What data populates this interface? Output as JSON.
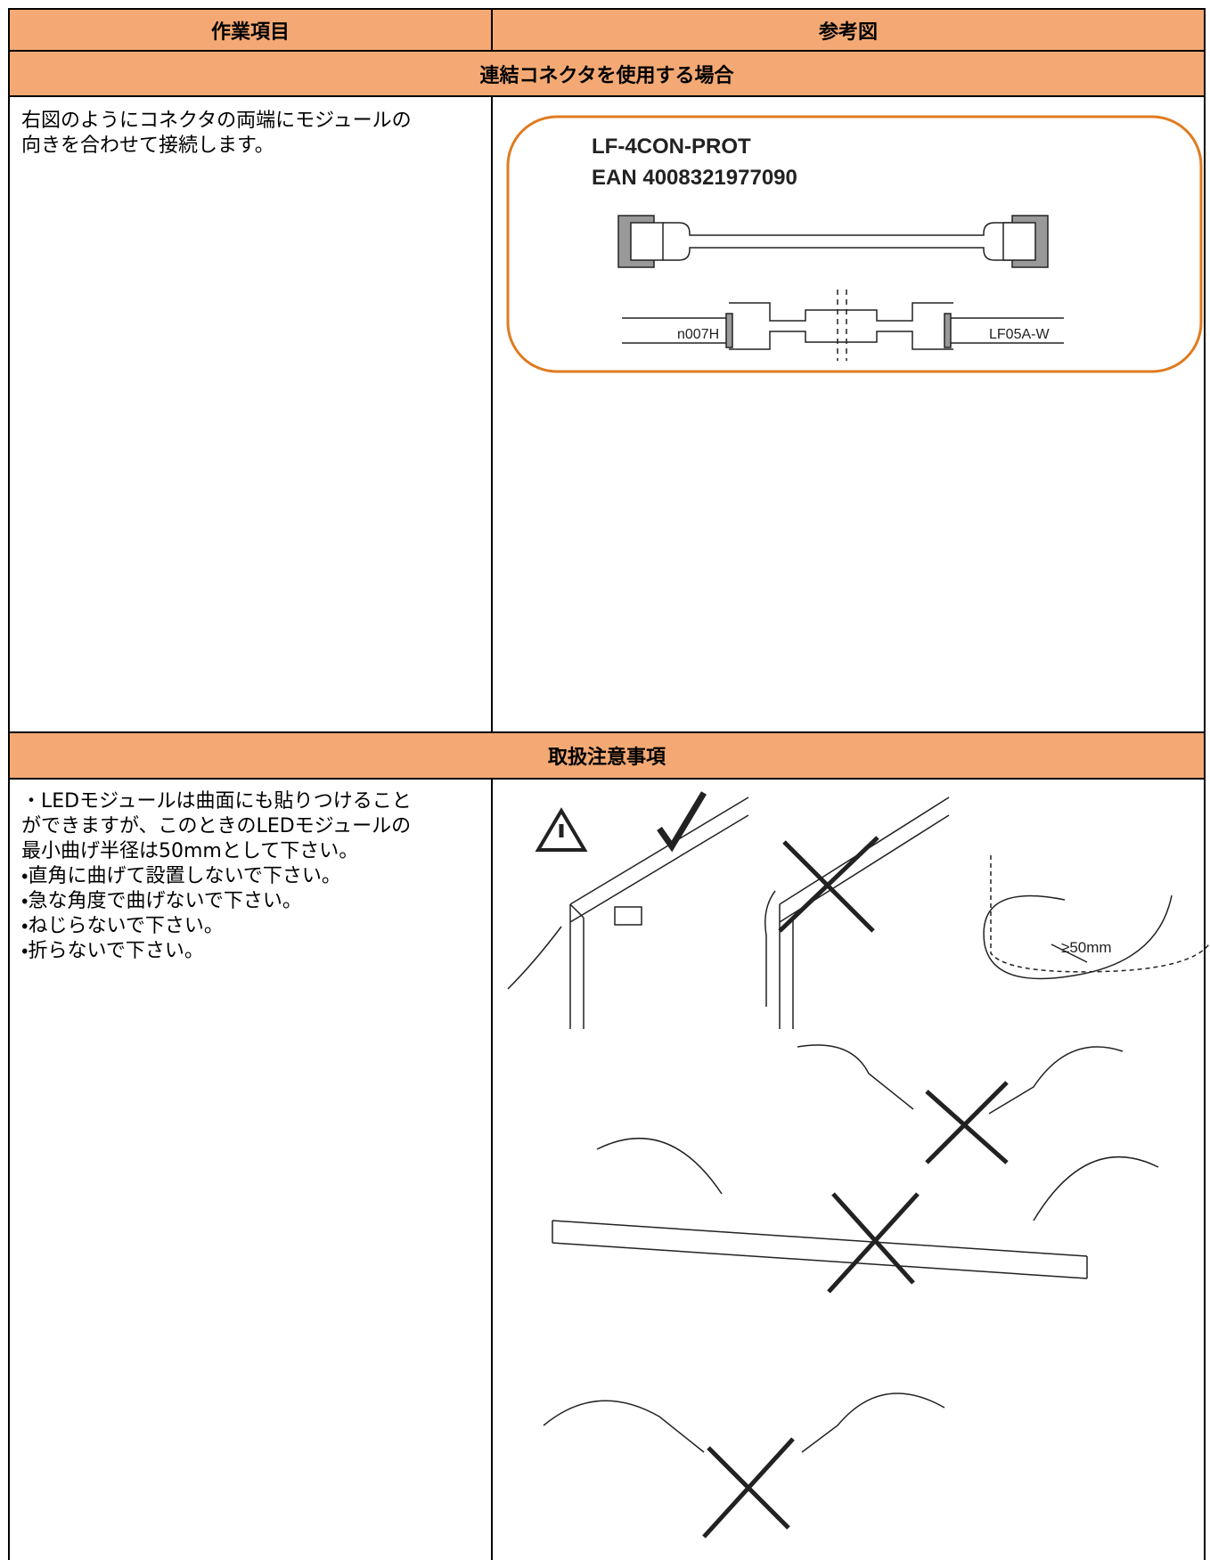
{
  "table": {
    "header": [
      "作業項目",
      "参考図"
    ],
    "sections": [
      {
        "title": "連結コネクタを使用する場合",
        "text": "右図のようにコネクタの両端にモジュールの向きを合わせて接続します。",
        "figure": {
          "labels": [
            "LF-4CON-PROT",
            "EAN 4008321977090",
            "n007H",
            "LF05A-W"
          ]
        }
      },
      {
        "title": "取扱注意事項",
        "text": [
          "・LEDモジュールは曲面にも貼りつけることができますが、このときのLEDモジュールの最小曲げ半径は50mmとして下さい。",
          "・直角に曲げて設置しないで下さい。",
          "・急な角度で曲げないで下さい。",
          "・ねじらないで下さい。",
          "・折らないで下さい。"
        ],
        "figure": {
          "labels": [
            "≥50mm"
          ]
        }
      }
    ]
  }
}
